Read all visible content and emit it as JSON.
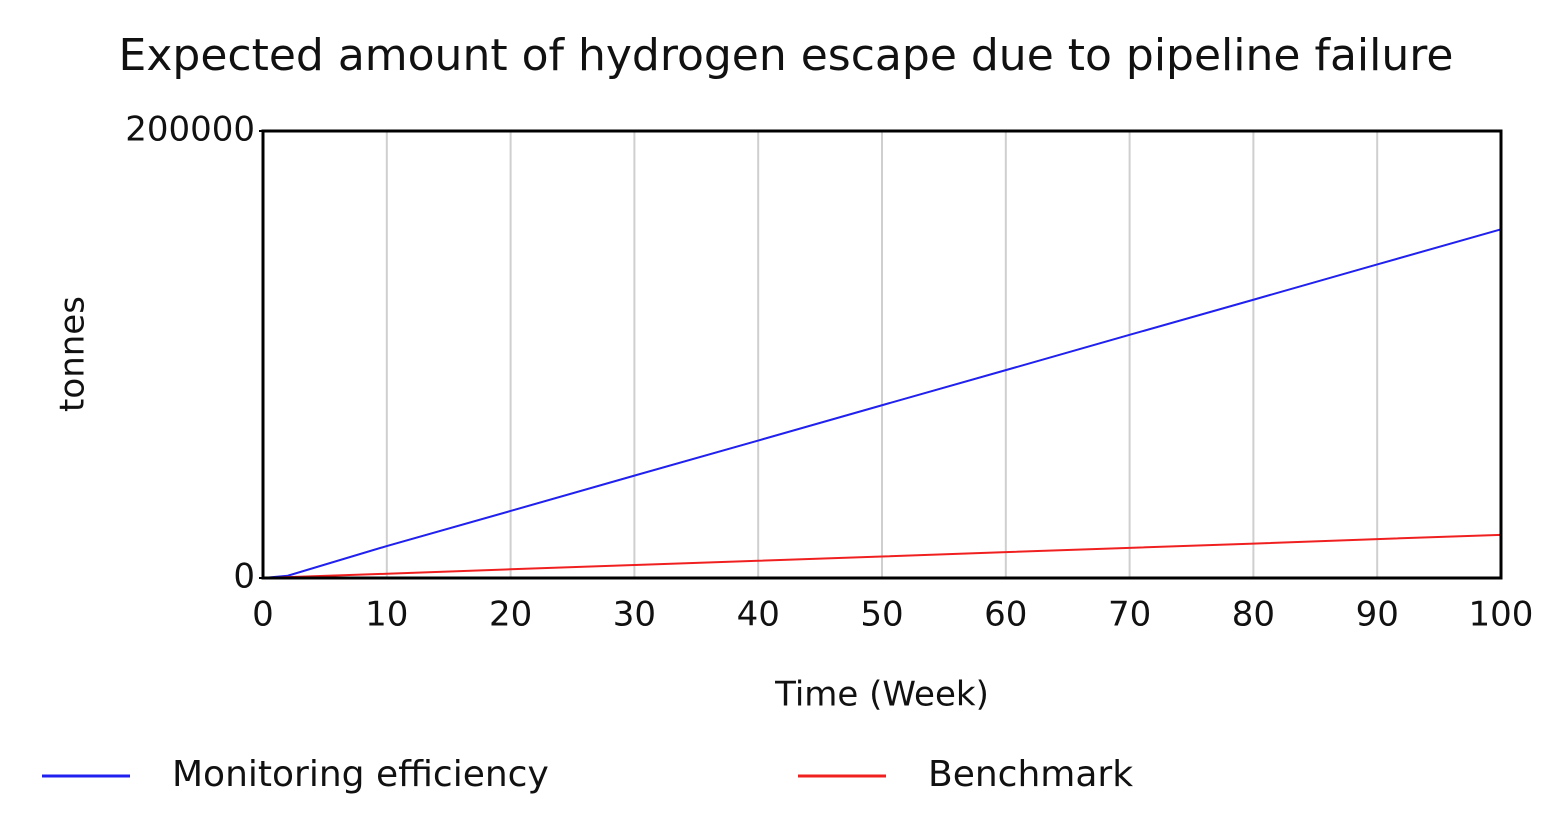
{
  "chart_data": {
    "type": "line",
    "title": "Expected amount of hydrogen escape due to pipeline failure",
    "x_label": "Time (Week)",
    "y_label": "tonnes",
    "x": [
      0,
      2,
      10,
      20,
      30,
      40,
      50,
      60,
      70,
      80,
      90,
      100
    ],
    "series": [
      {
        "name": "Monitoring efficiency",
        "color": "#2020f0",
        "values": [
          0,
          1000,
          14300,
          30000,
          45800,
          61500,
          77300,
          93000,
          108800,
          124500,
          140300,
          156000
        ]
      },
      {
        "name": "Benchmark",
        "color": "#f02020",
        "values": [
          0,
          390,
          1900,
          3900,
          5800,
          7700,
          9600,
          11600,
          13500,
          15400,
          17400,
          19300
        ]
      }
    ],
    "xlim": [
      0,
      100
    ],
    "xticks": [
      0,
      10,
      20,
      30,
      40,
      50,
      60,
      70,
      80,
      90,
      100
    ],
    "ylim": [
      0,
      200000
    ],
    "yticks": [
      0,
      200000
    ],
    "grid": true
  }
}
